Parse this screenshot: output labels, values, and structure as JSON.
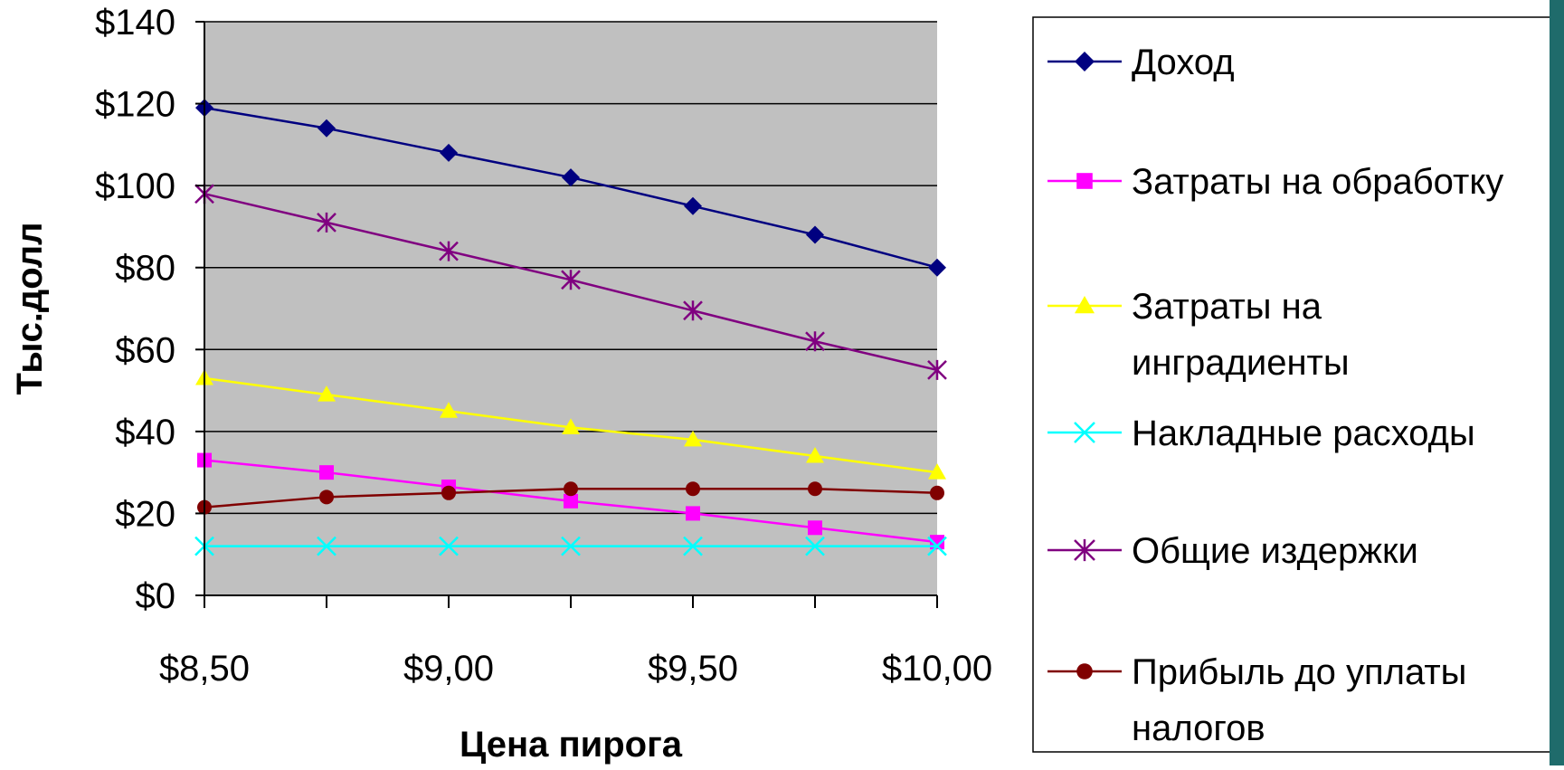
{
  "chart_data": {
    "type": "line",
    "title": "",
    "xlabel": "Цена пирога",
    "ylabel": "Тыс.долл",
    "x": [
      8.5,
      8.75,
      9.0,
      9.25,
      9.5,
      9.75,
      10.0
    ],
    "xlim": [
      8.5,
      10.0
    ],
    "x_ticks": [
      8.5,
      9.0,
      9.5,
      10.0
    ],
    "x_tick_labels": [
      "$8,50",
      "$9,00",
      "$9,50",
      "$10,00"
    ],
    "ylim": [
      0,
      140
    ],
    "y_ticks": [
      0,
      20,
      40,
      60,
      80,
      100,
      120,
      140
    ],
    "y_tick_labels": [
      "$0",
      "$20",
      "$40",
      "$60",
      "$80",
      "$100",
      "$120",
      "$140"
    ],
    "grid": "horizontal",
    "legend_position": "right",
    "plot_background": "#c0c0c0",
    "series": [
      {
        "name": "Доход",
        "marker": "diamond",
        "color": "#000080",
        "values": [
          119,
          114,
          108,
          102,
          95,
          88,
          80
        ]
      },
      {
        "name": "Затраты на обработку",
        "marker": "square",
        "color": "#ff00ff",
        "values": [
          33,
          30,
          26.5,
          23,
          20,
          16.5,
          13
        ]
      },
      {
        "name": "Затраты на инградиенты",
        "marker": "triangle",
        "color": "#ffff00",
        "values": [
          53,
          49,
          45,
          41,
          38,
          34,
          30
        ]
      },
      {
        "name": "Накладные расходы",
        "marker": "x",
        "color": "#00ffff",
        "values": [
          12,
          12,
          12,
          12,
          12,
          12,
          12
        ]
      },
      {
        "name": "Общие издержки",
        "marker": "star",
        "color": "#800080",
        "values": [
          98,
          91,
          84,
          77,
          69.5,
          62,
          55
        ]
      },
      {
        "name": "Прибыль до уплаты налогов",
        "marker": "circle",
        "color": "#800000",
        "values": [
          21.5,
          24,
          25,
          26,
          26,
          26,
          25
        ]
      }
    ]
  }
}
